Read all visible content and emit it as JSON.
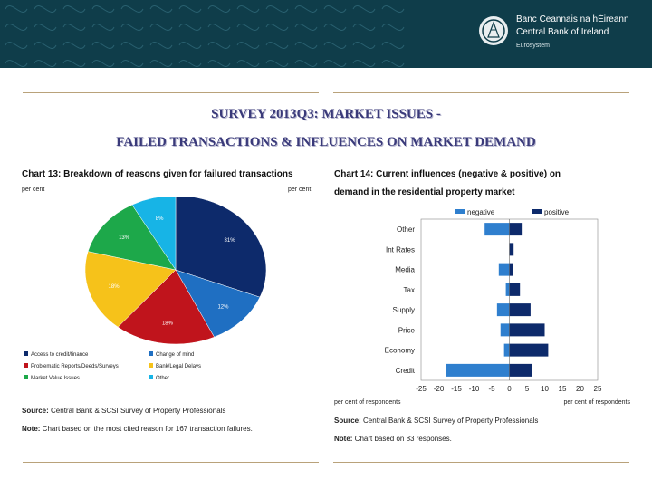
{
  "header": {
    "bank_name_irish": "Banc Ceannais na hÉireann",
    "bank_name_english": "Central Bank of Ireland",
    "eurosystem": "Eurosystem",
    "colors": {
      "banner": "#0f3d4a",
      "accent": "#b9a27a"
    }
  },
  "slide": {
    "title_line1": "SURVEY 2013Q3: MARKET ISSUES -",
    "title_line2": "FAILED TRANSACTIONS & INFLUENCES ON MARKET DEMAND"
  },
  "chart_data": [
    {
      "type": "pie",
      "title": "Chart 13: Breakdown of reasons given for failured transactions",
      "unit_left": "per cent",
      "unit_right": "per cent",
      "slices": [
        {
          "label": "Access to credit/finance",
          "value": 31,
          "display": "31%",
          "color": "#0d2a6b"
        },
        {
          "label": "Change of mind",
          "value": 12,
          "display": "12%",
          "color": "#1f6fc2"
        },
        {
          "label": "Problematic Reports/Deeds/Surveys",
          "value": 18,
          "display": "18%",
          "color": "#c0141c"
        },
        {
          "label": "Bank/Legal Delays",
          "value": 18,
          "display": "18%",
          "color": "#f6c21a"
        },
        {
          "label": "Market Value Issues",
          "value": 13,
          "display": "13%",
          "color": "#1da84a"
        },
        {
          "label": "Other",
          "value": 8,
          "display": "8%",
          "color": "#17b4e6"
        }
      ],
      "source": "Central Bank & SCSI Survey of Property Professionals",
      "note": "Chart based on the most cited reason for 167 transaction failures."
    },
    {
      "type": "bar",
      "orientation": "horizontal",
      "title_line1": "Chart 14: Current influences (negative & positive) on",
      "title_line2": "demand in the residential property market",
      "categories": [
        "Other",
        "Int Rates",
        "Media",
        "Tax",
        "Supply",
        "Price",
        "Economy",
        "Credit"
      ],
      "series": [
        {
          "name": "negative",
          "color": "#2f7fce",
          "values": [
            -7,
            0,
            -3,
            -1,
            -3.5,
            -2.5,
            -1.5,
            -18
          ]
        },
        {
          "name": "positive",
          "color": "#0d2a6b",
          "values": [
            3.5,
            1.2,
            1,
            3,
            6,
            10,
            11,
            6.5
          ]
        }
      ],
      "xlim": [
        -25,
        25
      ],
      "xticks": [
        "-25",
        "-20",
        "-15",
        "-10",
        "-5",
        "0",
        "5",
        "10",
        "15",
        "20",
        "25"
      ],
      "xlabel_left": "per cent of respondents",
      "xlabel_right": "per cent of respondents",
      "source": "Central Bank & SCSI Survey of Property Professionals",
      "note": "Chart based on 83 responses."
    }
  ],
  "labels": {
    "source": "Source",
    "note": "Note"
  }
}
